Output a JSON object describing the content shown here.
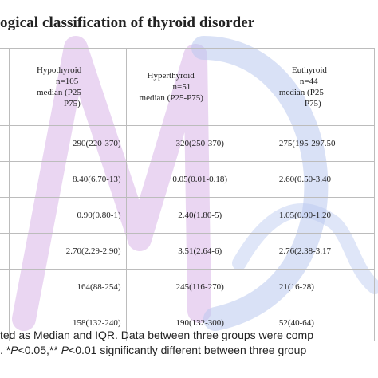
{
  "title": "ogical classification of thyroid disorder",
  "headers": [
    {
      "lines": [
        "Hypothyroid",
        "n=105",
        "median (P25-",
        "P75)"
      ]
    },
    {
      "lines": [
        "Hyperthyroid",
        "n=51",
        "median (P25-P75)"
      ]
    },
    {
      "lines": [
        "Euthyroid",
        "n=44",
        "median (P25-",
        "P75)"
      ]
    }
  ],
  "rows": [
    [
      "290(220-370)",
      "320(250-370)",
      "275(195-297.50"
    ],
    [
      "8.40(6.70-13)",
      "0.05(0.01-0.18)",
      "2.60(0.50-3.40"
    ],
    [
      "0.90(0.80-1)",
      "2.40(1.80-5)",
      "1.05(0.90-1.20"
    ],
    [
      "2.70(2.29-2.90)",
      "3.51(2.64-6)",
      "2.76(2.38-3.17"
    ],
    [
      "164(88-254)",
      "245(116-270)",
      "21(16-28)"
    ],
    [
      "158(132-240)",
      "190(132-300)",
      "52(40-64)"
    ]
  ],
  "footer": {
    "line1": "ted as Median and IQR. Data between three groups were comp",
    "line2_pre": ". *",
    "line2_p1": "P",
    "line2_mid": "<0.05,** ",
    "line2_p2": "P",
    "line2_post": "<0.01 significantly different between three group"
  },
  "watermark_colors": [
    "#d7b6e6",
    "#b7c9f0"
  ]
}
